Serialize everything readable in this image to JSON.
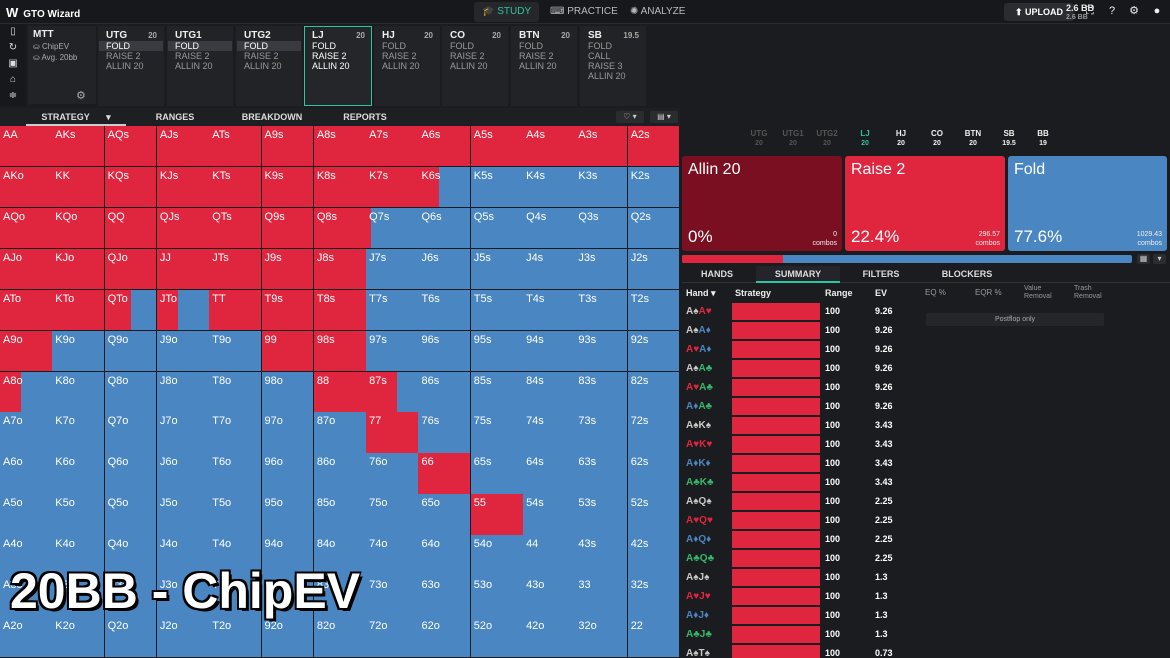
{
  "app": {
    "name": "GTO Wizard"
  },
  "nav": {
    "tabs": [
      "STUDY",
      "PRACTICE",
      "ANALYZE"
    ],
    "active": "STUDY",
    "upload": "UPLOAD"
  },
  "game": {
    "title": "MTT",
    "subtitle": "ChipEV",
    "avg": "Avg. 20bb"
  },
  "positions": [
    {
      "name": "UTG",
      "stack": "20",
      "actions": [
        "FOLD",
        "RAISE 2",
        "ALLIN 20"
      ],
      "selected": "FOLD"
    },
    {
      "name": "UTG1",
      "stack": "",
      "actions": [
        "FOLD",
        "RAISE 2",
        "ALLIN 20"
      ],
      "selected": "FOLD"
    },
    {
      "name": "UTG2",
      "stack": "",
      "actions": [
        "FOLD",
        "RAISE 2",
        "ALLIN 20"
      ],
      "selected": "FOLD"
    },
    {
      "name": "LJ",
      "stack": "20",
      "actions": [
        "FOLD",
        "RAISE 2",
        "ALLIN 20"
      ],
      "selected": "",
      "active": true
    },
    {
      "name": "HJ",
      "stack": "20",
      "actions": [
        "FOLD",
        "RAISE 2",
        "ALLIN 20"
      ],
      "selected": ""
    },
    {
      "name": "CO",
      "stack": "20",
      "actions": [
        "FOLD",
        "RAISE 2",
        "ALLIN 20"
      ],
      "selected": ""
    },
    {
      "name": "BTN",
      "stack": "20",
      "actions": [
        "FOLD",
        "RAISE 2",
        "ALLIN 20"
      ],
      "selected": ""
    },
    {
      "name": "SB",
      "stack": "19.5",
      "actions": [
        "FOLD",
        "CALL",
        "RAISE 3",
        "ALLIN 20"
      ],
      "selected": ""
    }
  ],
  "left_tabs": [
    "STRATEGY",
    "RANGES",
    "BREAKDOWN",
    "REPORTS"
  ],
  "overlay_text": "20BB - ChipEV",
  "colors": {
    "raise": "#e0263f",
    "fold": "#4a86c2",
    "allin": "#7a0f22",
    "accent": "#2ec4a0"
  },
  "matrix": {
    "ranks": [
      "A",
      "K",
      "Q",
      "J",
      "T",
      "9",
      "8",
      "7",
      "6",
      "5",
      "4",
      "3",
      "2"
    ],
    "raise_freq": [
      [
        1,
        1,
        1,
        1,
        1,
        1,
        1,
        1,
        1,
        1,
        1,
        1,
        1
      ],
      [
        1,
        1,
        1,
        1,
        1,
        1,
        1,
        1,
        0.4,
        0,
        0,
        0,
        0
      ],
      [
        1,
        1,
        1,
        1,
        1,
        1,
        1,
        0.1,
        0,
        0,
        0,
        0,
        0
      ],
      [
        1,
        1,
        1,
        1,
        1,
        1,
        1,
        0,
        0,
        0,
        0,
        0,
        0
      ],
      [
        1,
        1,
        0.5,
        0.4,
        1,
        1,
        1,
        0,
        0,
        0,
        0,
        0,
        0
      ],
      [
        1,
        0,
        0,
        0,
        0,
        1,
        1,
        0,
        0,
        0,
        0,
        0,
        0
      ],
      [
        0.4,
        0,
        0,
        0,
        0,
        0,
        1,
        0.6,
        0,
        0,
        0,
        0,
        0
      ],
      [
        0,
        0,
        0,
        0,
        0,
        0,
        0,
        1,
        0,
        0,
        0,
        0,
        0
      ],
      [
        0,
        0,
        0,
        0,
        0,
        0,
        0,
        0,
        1,
        0,
        0,
        0,
        0
      ],
      [
        0,
        0,
        0,
        0,
        0,
        0,
        0,
        0,
        0,
        1,
        0,
        0,
        0
      ],
      [
        0,
        0,
        0,
        0,
        0,
        0,
        0,
        0,
        0,
        0,
        0,
        0,
        0
      ],
      [
        0,
        0,
        0,
        0,
        0,
        0,
        0,
        0,
        0,
        0,
        0,
        0,
        0
      ],
      [
        0,
        0,
        0,
        0,
        0,
        0,
        0,
        0,
        0,
        0,
        0,
        0,
        0
      ]
    ]
  },
  "position_strip": [
    {
      "name": "UTG",
      "stack": "20",
      "dim": true
    },
    {
      "name": "UTG1",
      "stack": "20",
      "dim": true
    },
    {
      "name": "UTG2",
      "stack": "20",
      "dim": true
    },
    {
      "name": "LJ",
      "stack": "20",
      "current": true
    },
    {
      "name": "HJ",
      "stack": "20"
    },
    {
      "name": "CO",
      "stack": "20"
    },
    {
      "name": "BTN",
      "stack": "20"
    },
    {
      "name": "SB",
      "stack": "19.5"
    },
    {
      "name": "BB",
      "stack": "19"
    }
  ],
  "pot": {
    "value": "2.6 BB",
    "sub": "2.6 BB"
  },
  "action_cards": [
    {
      "name": "Allin 20",
      "pct": "0%",
      "combos": "0",
      "combos_label": "combos",
      "color": "#7a0f22"
    },
    {
      "name": "Raise 2",
      "pct": "22.4%",
      "combos": "296.57",
      "combos_label": "combos",
      "color": "#e0263f"
    },
    {
      "name": "Fold",
      "pct": "77.6%",
      "combos": "1029.43",
      "combos_label": "combos",
      "color": "#4a86c2"
    }
  ],
  "raise_share": 0.224,
  "right_tabs": [
    "HANDS",
    "SUMMARY",
    "FILTERS",
    "BLOCKERS"
  ],
  "table_headers": {
    "hand": "Hand",
    "strategy": "Strategy",
    "range": "Range",
    "ev": "EV",
    "eq": "EQ %",
    "eqr": "EQR %",
    "value_removal": "Value Removal",
    "trash_removal": "Trash Removal"
  },
  "postflop_note": "Postflop only",
  "hands": [
    {
      "cards": [
        [
          "A",
          "S"
        ],
        [
          "A",
          "H"
        ]
      ],
      "range": "100",
      "ev": "9.26"
    },
    {
      "cards": [
        [
          "A",
          "S"
        ],
        [
          "A",
          "D"
        ]
      ],
      "range": "100",
      "ev": "9.26"
    },
    {
      "cards": [
        [
          "A",
          "H"
        ],
        [
          "A",
          "D"
        ]
      ],
      "range": "100",
      "ev": "9.26"
    },
    {
      "cards": [
        [
          "A",
          "S"
        ],
        [
          "A",
          "C"
        ]
      ],
      "range": "100",
      "ev": "9.26"
    },
    {
      "cards": [
        [
          "A",
          "H"
        ],
        [
          "A",
          "C"
        ]
      ],
      "range": "100",
      "ev": "9.26"
    },
    {
      "cards": [
        [
          "A",
          "D"
        ],
        [
          "A",
          "C"
        ]
      ],
      "range": "100",
      "ev": "9.26"
    },
    {
      "cards": [
        [
          "A",
          "S"
        ],
        [
          "K",
          "S"
        ]
      ],
      "range": "100",
      "ev": "3.43"
    },
    {
      "cards": [
        [
          "A",
          "H"
        ],
        [
          "K",
          "H"
        ]
      ],
      "range": "100",
      "ev": "3.43"
    },
    {
      "cards": [
        [
          "A",
          "D"
        ],
        [
          "K",
          "D"
        ]
      ],
      "range": "100",
      "ev": "3.43"
    },
    {
      "cards": [
        [
          "A",
          "C"
        ],
        [
          "K",
          "C"
        ]
      ],
      "range": "100",
      "ev": "3.43"
    },
    {
      "cards": [
        [
          "A",
          "S"
        ],
        [
          "Q",
          "S"
        ]
      ],
      "range": "100",
      "ev": "2.25"
    },
    {
      "cards": [
        [
          "A",
          "H"
        ],
        [
          "Q",
          "H"
        ]
      ],
      "range": "100",
      "ev": "2.25"
    },
    {
      "cards": [
        [
          "A",
          "D"
        ],
        [
          "Q",
          "D"
        ]
      ],
      "range": "100",
      "ev": "2.25"
    },
    {
      "cards": [
        [
          "A",
          "C"
        ],
        [
          "Q",
          "C"
        ]
      ],
      "range": "100",
      "ev": "2.25"
    },
    {
      "cards": [
        [
          "A",
          "S"
        ],
        [
          "J",
          "S"
        ]
      ],
      "range": "100",
      "ev": "1.3"
    },
    {
      "cards": [
        [
          "A",
          "H"
        ],
        [
          "J",
          "H"
        ]
      ],
      "range": "100",
      "ev": "1.3"
    },
    {
      "cards": [
        [
          "A",
          "D"
        ],
        [
          "J",
          "D"
        ]
      ],
      "range": "100",
      "ev": "1.3"
    },
    {
      "cards": [
        [
          "A",
          "C"
        ],
        [
          "J",
          "C"
        ]
      ],
      "range": "100",
      "ev": "1.3"
    },
    {
      "cards": [
        [
          "A",
          "S"
        ],
        [
          "T",
          "S"
        ]
      ],
      "range": "100",
      "ev": "0.73"
    }
  ]
}
